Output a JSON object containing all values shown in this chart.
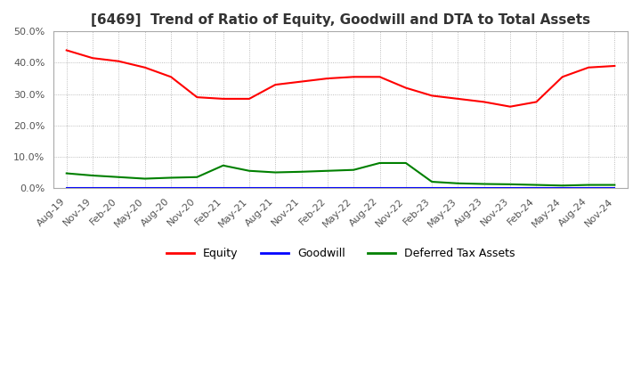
{
  "title": "[6469]  Trend of Ratio of Equity, Goodwill and DTA to Total Assets",
  "ylim": [
    0.0,
    0.5
  ],
  "yticks": [
    0.0,
    0.1,
    0.2,
    0.3,
    0.4,
    0.5
  ],
  "x_labels": [
    "Aug-19",
    "Nov-19",
    "Feb-20",
    "May-20",
    "Aug-20",
    "Nov-20",
    "Feb-21",
    "May-21",
    "Aug-21",
    "Nov-21",
    "Feb-22",
    "May-22",
    "Aug-22",
    "Nov-22",
    "Feb-23",
    "May-23",
    "Aug-23",
    "Nov-23",
    "Feb-24",
    "May-24",
    "Aug-24",
    "Nov-24"
  ],
  "equity": [
    0.44,
    0.415,
    0.405,
    0.385,
    0.355,
    0.29,
    0.285,
    0.285,
    0.33,
    0.34,
    0.35,
    0.355,
    0.355,
    0.32,
    0.295,
    0.285,
    0.275,
    0.26,
    0.275,
    0.355,
    0.385,
    0.39
  ],
  "goodwill": [
    0.0,
    0.0,
    0.0,
    0.0,
    0.0,
    0.0,
    0.0,
    0.0,
    0.0,
    0.0,
    0.0,
    0.0,
    0.0,
    0.0,
    0.0,
    0.0,
    0.0,
    0.0,
    0.0,
    0.0,
    0.0,
    0.0
  ],
  "dta": [
    0.047,
    0.04,
    0.035,
    0.03,
    0.033,
    0.035,
    0.072,
    0.055,
    0.05,
    0.052,
    0.055,
    0.058,
    0.08,
    0.08,
    0.02,
    0.015,
    0.013,
    0.012,
    0.01,
    0.008,
    0.01,
    0.01
  ],
  "equity_color": "#ff0000",
  "goodwill_color": "#0000ff",
  "dta_color": "#008000",
  "background_color": "#ffffff",
  "grid_color": "#aaaaaa",
  "legend_labels": [
    "Equity",
    "Goodwill",
    "Deferred Tax Assets"
  ],
  "title_fontsize": 11,
  "tick_fontsize": 8,
  "legend_fontsize": 9
}
